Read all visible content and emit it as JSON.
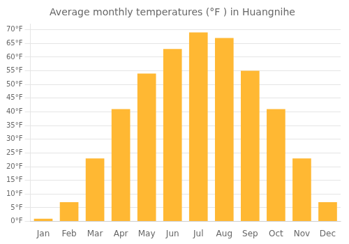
{
  "chart_data": {
    "type": "bar",
    "title": "Average monthly temperatures (°F ) in Huangnihe",
    "categories": [
      "Jan",
      "Feb",
      "Mar",
      "Apr",
      "May",
      "Jun",
      "Jul",
      "Aug",
      "Sep",
      "Oct",
      "Nov",
      "Dec"
    ],
    "values": [
      1,
      7,
      23,
      41,
      54,
      63,
      69,
      67,
      55,
      41,
      23,
      7
    ],
    "color": "#FFB833",
    "ylim": [
      0,
      72
    ],
    "yticks": [
      {
        "value": 0,
        "label": "0°F"
      },
      {
        "value": 5,
        "label": "5°F"
      },
      {
        "value": 10,
        "label": "10°F"
      },
      {
        "value": 15,
        "label": "15°F"
      },
      {
        "value": 20,
        "label": "20°F"
      },
      {
        "value": 25,
        "label": "25°F"
      },
      {
        "value": 30,
        "label": "30°F"
      },
      {
        "value": 35,
        "label": "35°F"
      },
      {
        "value": 40,
        "label": "40°F"
      },
      {
        "value": 45,
        "label": "45°F"
      },
      {
        "value": 50,
        "label": "50°F"
      },
      {
        "value": 55,
        "label": "55°F"
      },
      {
        "value": 60,
        "label": "60°F"
      },
      {
        "value": 65,
        "label": "65°F"
      },
      {
        "value": 70,
        "label": "70°F"
      }
    ],
    "grid": true
  }
}
